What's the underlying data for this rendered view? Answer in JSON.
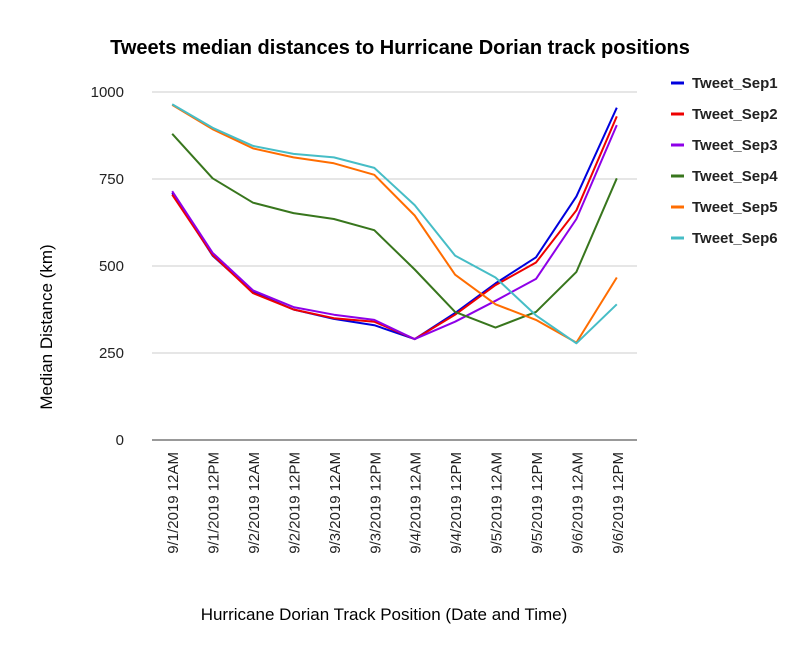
{
  "chart_data": {
    "type": "line",
    "title": "Tweets median distances to Hurricane Dorian track positions",
    "xlabel": "Hurricane Dorian Track Position (Date and Time)",
    "ylabel": "Median Distance (km)",
    "ylim": [
      0,
      1000
    ],
    "yticks": [
      0,
      250,
      500,
      750,
      1000
    ],
    "grid": true,
    "legend_position": "right",
    "categories": [
      "9/1/2019 12AM",
      "9/1/2019 12PM",
      "9/2/2019 12AM",
      "9/2/2019 12PM",
      "9/3/2019 12AM",
      "9/3/2019 12PM",
      "9/4/2019 12AM",
      "9/4/2019 12PM",
      "9/5/2019 12AM",
      "9/5/2019 12PM",
      "9/6/2019 12AM",
      "9/6/2019 12PM"
    ],
    "series": [
      {
        "name": "Tweet_Sep1",
        "color": "#0000dd",
        "values": [
          710,
          530,
          425,
          375,
          348,
          330,
          290,
          365,
          450,
          525,
          700,
          955
        ]
      },
      {
        "name": "Tweet_Sep2",
        "color": "#ee0000",
        "values": [
          705,
          532,
          422,
          375,
          350,
          340,
          290,
          360,
          445,
          510,
          660,
          930
        ]
      },
      {
        "name": "Tweet_Sep3",
        "color": "#8e00e8",
        "values": [
          715,
          538,
          430,
          382,
          360,
          345,
          290,
          340,
          400,
          463,
          635,
          905
        ]
      },
      {
        "name": "Tweet_Sep4",
        "color": "#38761d",
        "values": [
          880,
          752,
          682,
          652,
          635,
          603,
          490,
          368,
          323,
          368,
          483,
          752
        ]
      },
      {
        "name": "Tweet_Sep5",
        "color": "#ff6d01",
        "values": [
          963,
          893,
          838,
          812,
          795,
          762,
          645,
          475,
          390,
          345,
          280,
          467
        ]
      },
      {
        "name": "Tweet_Sep6",
        "color": "#46bdc6",
        "values": [
          965,
          897,
          845,
          822,
          812,
          782,
          675,
          530,
          467,
          358,
          278,
          390
        ]
      }
    ]
  }
}
